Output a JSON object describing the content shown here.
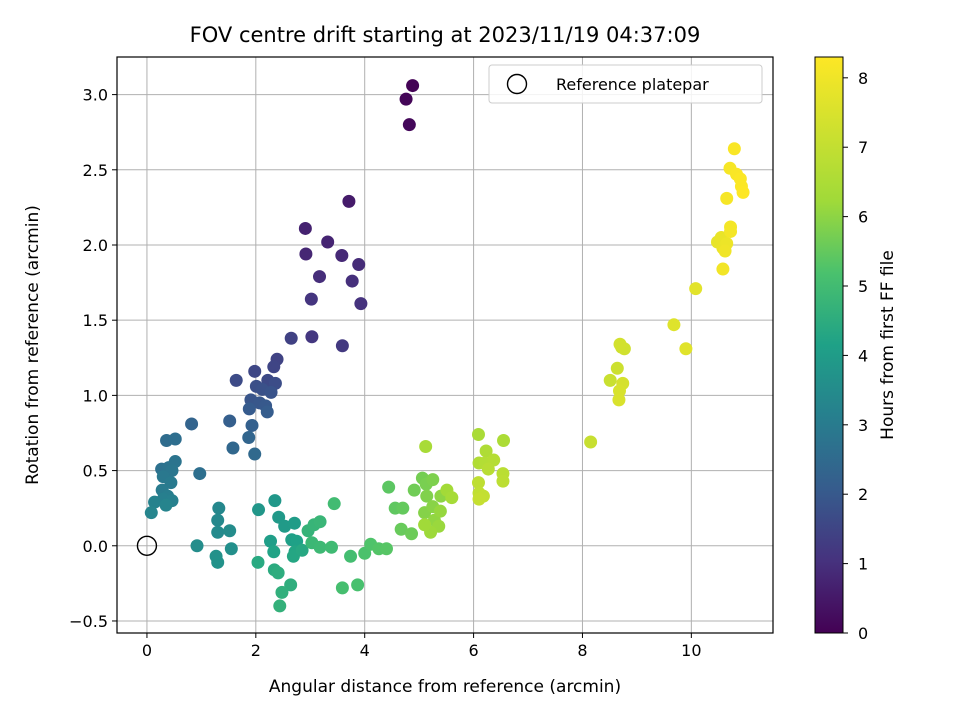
{
  "chart_data": {
    "type": "scatter",
    "title": "FOV centre drift starting at 2023/11/19 04:37:09",
    "xlabel": "Angular distance from reference (arcmin)",
    "ylabel": "Rotation from reference (arcmin)",
    "xlim": [
      -0.55,
      11.5
    ],
    "ylim": [
      -0.58,
      3.25
    ],
    "xticks": [
      0,
      2,
      4,
      6,
      8,
      10
    ],
    "yticks": [
      -0.5,
      0.0,
      0.5,
      1.0,
      1.5,
      2.0,
      2.5,
      3.0
    ],
    "grid": true,
    "legend": {
      "placement": "top-right",
      "entries": [
        "Reference platepar"
      ]
    },
    "reference_point": {
      "x": 0,
      "y": 0
    },
    "colorbar": {
      "label": "Hours from first FF file",
      "colormap": "viridis",
      "range": [
        0,
        8.3
      ],
      "ticks": [
        0,
        1,
        2,
        3,
        4,
        5,
        6,
        7,
        8
      ]
    },
    "point_columns": [
      "x",
      "y",
      "hours"
    ],
    "points": [
      [
        4.88,
        3.06,
        0.05
      ],
      [
        4.76,
        2.97,
        0.1
      ],
      [
        4.82,
        2.8,
        0.15
      ],
      [
        3.71,
        2.29,
        0.55
      ],
      [
        2.91,
        2.11,
        0.7
      ],
      [
        3.32,
        2.02,
        0.75
      ],
      [
        2.92,
        1.94,
        0.8
      ],
      [
        3.58,
        1.93,
        0.85
      ],
      [
        3.89,
        1.87,
        0.9
      ],
      [
        3.17,
        1.79,
        0.95
      ],
      [
        3.77,
        1.76,
        1.0
      ],
      [
        3.93,
        1.61,
        1.05
      ],
      [
        3.02,
        1.64,
        1.1
      ],
      [
        3.03,
        1.39,
        1.15
      ],
      [
        3.59,
        1.33,
        1.2
      ],
      [
        2.65,
        1.38,
        1.4
      ],
      [
        2.39,
        1.24,
        1.45
      ],
      [
        2.33,
        1.19,
        1.5
      ],
      [
        1.98,
        1.16,
        1.55
      ],
      [
        2.22,
        1.1,
        1.6
      ],
      [
        1.64,
        1.1,
        1.65
      ],
      [
        2.36,
        1.08,
        1.7
      ],
      [
        2.01,
        1.06,
        1.75
      ],
      [
        2.12,
        1.04,
        1.8
      ],
      [
        2.28,
        1.02,
        1.85
      ],
      [
        1.91,
        0.97,
        1.9
      ],
      [
        2.07,
        0.95,
        1.95
      ],
      [
        2.18,
        0.93,
        2.0
      ],
      [
        1.88,
        0.91,
        2.05
      ],
      [
        2.21,
        0.89,
        2.1
      ],
      [
        1.52,
        0.83,
        2.15
      ],
      [
        1.93,
        0.8,
        2.2
      ],
      [
        0.82,
        0.81,
        2.3
      ],
      [
        1.87,
        0.72,
        2.35
      ],
      [
        1.58,
        0.65,
        2.4
      ],
      [
        1.98,
        0.61,
        2.45
      ],
      [
        0.36,
        0.7,
        2.55
      ],
      [
        0.52,
        0.71,
        2.6
      ],
      [
        0.97,
        0.48,
        2.65
      ],
      [
        0.27,
        0.51,
        2.7
      ],
      [
        0.4,
        0.52,
        2.75
      ],
      [
        0.52,
        0.56,
        2.8
      ],
      [
        0.46,
        0.5,
        2.85
      ],
      [
        0.3,
        0.46,
        2.9
      ],
      [
        0.44,
        0.42,
        2.95
      ],
      [
        0.28,
        0.37,
        3.0
      ],
      [
        0.38,
        0.33,
        3.05
      ],
      [
        0.3,
        0.31,
        3.1
      ],
      [
        0.46,
        0.3,
        3.15
      ],
      [
        0.14,
        0.29,
        3.2
      ],
      [
        0.35,
        0.27,
        3.25
      ],
      [
        0.08,
        0.22,
        3.3
      ],
      [
        1.32,
        0.25,
        3.35
      ],
      [
        1.3,
        0.17,
        3.4
      ],
      [
        1.3,
        0.09,
        3.45
      ],
      [
        1.52,
        0.1,
        3.5
      ],
      [
        0.92,
        0.0,
        3.55
      ],
      [
        1.55,
        -0.02,
        3.6
      ],
      [
        1.27,
        -0.07,
        3.65
      ],
      [
        1.3,
        -0.11,
        3.7
      ],
      [
        2.05,
        0.24,
        3.8
      ],
      [
        2.35,
        0.3,
        3.85
      ],
      [
        2.42,
        0.19,
        3.9
      ],
      [
        2.53,
        0.13,
        3.95
      ],
      [
        2.71,
        0.15,
        4.0
      ],
      [
        2.27,
        0.03,
        4.05
      ],
      [
        2.66,
        0.04,
        4.1
      ],
      [
        2.75,
        0.03,
        4.15
      ],
      [
        2.33,
        -0.04,
        4.2
      ],
      [
        2.72,
        -0.04,
        4.25
      ],
      [
        2.69,
        -0.07,
        4.3
      ],
      [
        2.85,
        -0.03,
        4.35
      ],
      [
        2.04,
        -0.11,
        4.4
      ],
      [
        2.34,
        -0.16,
        4.45
      ],
      [
        2.41,
        -0.18,
        4.5
      ],
      [
        2.64,
        -0.26,
        4.55
      ],
      [
        2.48,
        -0.31,
        4.6
      ],
      [
        2.44,
        -0.4,
        4.65
      ],
      [
        2.96,
        0.1,
        4.7
      ],
      [
        3.07,
        0.14,
        4.75
      ],
      [
        3.18,
        0.16,
        4.8
      ],
      [
        3.03,
        0.02,
        4.85
      ],
      [
        3.18,
        -0.01,
        4.9
      ],
      [
        3.39,
        -0.01,
        4.95
      ],
      [
        3.44,
        0.28,
        5.0
      ],
      [
        3.74,
        -0.07,
        5.05
      ],
      [
        3.59,
        -0.28,
        5.1
      ],
      [
        3.87,
        -0.26,
        5.15
      ],
      [
        4.0,
        -0.05,
        5.2
      ],
      [
        4.11,
        0.01,
        5.25
      ],
      [
        4.26,
        -0.02,
        5.3
      ],
      [
        4.4,
        -0.02,
        5.35
      ],
      [
        4.44,
        0.39,
        5.4
      ],
      [
        4.56,
        0.25,
        5.45
      ],
      [
        4.7,
        0.25,
        5.5
      ],
      [
        4.67,
        0.11,
        5.55
      ],
      [
        4.86,
        0.08,
        5.6
      ],
      [
        4.91,
        0.37,
        5.65
      ],
      [
        5.06,
        0.45,
        5.7
      ],
      [
        5.13,
        0.41,
        5.75
      ],
      [
        5.25,
        0.44,
        5.8
      ],
      [
        5.14,
        0.33,
        5.85
      ],
      [
        5.1,
        0.22,
        5.9
      ],
      [
        5.25,
        0.26,
        5.95
      ],
      [
        5.4,
        0.33,
        6.0
      ],
      [
        5.28,
        0.17,
        6.05
      ],
      [
        5.39,
        0.23,
        6.1
      ],
      [
        5.36,
        0.13,
        6.15
      ],
      [
        5.21,
        0.09,
        6.2
      ],
      [
        5.1,
        0.14,
        6.25
      ],
      [
        5.51,
        0.37,
        6.3
      ],
      [
        5.6,
        0.32,
        6.35
      ],
      [
        5.12,
        0.66,
        6.4
      ],
      [
        6.09,
        0.74,
        6.45
      ],
      [
        6.55,
        0.7,
        6.5
      ],
      [
        6.23,
        0.63,
        6.55
      ],
      [
        6.1,
        0.55,
        6.6
      ],
      [
        6.21,
        0.55,
        6.65
      ],
      [
        6.37,
        0.57,
        6.7
      ],
      [
        6.27,
        0.51,
        6.75
      ],
      [
        6.54,
        0.48,
        6.8
      ],
      [
        6.54,
        0.43,
        6.85
      ],
      [
        6.09,
        0.42,
        6.9
      ],
      [
        6.1,
        0.35,
        6.95
      ],
      [
        6.18,
        0.33,
        7.0
      ],
      [
        6.1,
        0.31,
        7.05
      ],
      [
        8.15,
        0.69,
        7.1
      ],
      [
        8.51,
        1.1,
        7.15
      ],
      [
        8.64,
        1.18,
        7.2
      ],
      [
        8.72,
        1.32,
        7.25
      ],
      [
        8.77,
        1.31,
        7.3
      ],
      [
        8.69,
        1.34,
        7.35
      ],
      [
        8.74,
        1.08,
        7.4
      ],
      [
        8.68,
        1.03,
        7.45
      ],
      [
        8.67,
        0.97,
        7.5
      ],
      [
        9.68,
        1.47,
        7.6
      ],
      [
        9.9,
        1.31,
        7.65
      ],
      [
        10.08,
        1.71,
        7.7
      ],
      [
        10.48,
        2.02,
        7.8
      ],
      [
        10.55,
        2.05,
        7.85
      ],
      [
        10.58,
        1.98,
        7.9
      ],
      [
        10.65,
        2.01,
        7.95
      ],
      [
        10.62,
        1.96,
        8.0
      ],
      [
        10.58,
        1.84,
        8.05
      ],
      [
        10.72,
        2.12,
        8.1
      ],
      [
        10.72,
        2.09,
        8.1
      ],
      [
        10.65,
        2.31,
        8.15
      ],
      [
        10.71,
        2.51,
        8.15
      ],
      [
        10.79,
        2.64,
        8.2
      ],
      [
        10.83,
        2.47,
        8.2
      ],
      [
        10.9,
        2.44,
        8.25
      ],
      [
        10.92,
        2.39,
        8.25
      ],
      [
        10.95,
        2.35,
        8.3
      ]
    ]
  }
}
